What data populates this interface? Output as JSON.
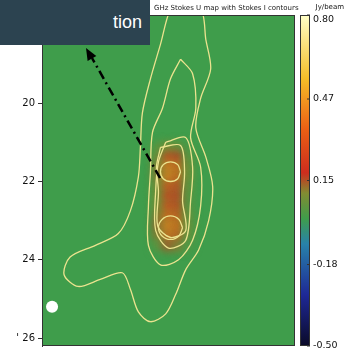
{
  "chart_data": {
    "type": "heatmap",
    "title": "GHz Stokes U map with Stokes I contours",
    "annotations": [
      "tion"
    ],
    "xlim": [
      0,
      6.3
    ],
    "ylim": [
      26.2,
      17.75
    ],
    "yticks": [
      20,
      22,
      24,
      {
        "value": 26,
        "label": "' 26"
      }
    ],
    "tick_labels": "y",
    "grid": false,
    "background": 0,
    "cells": [
      [
        2.875,
        21.125,
        0.05
      ],
      [
        3.125,
        21.125,
        0.1
      ],
      [
        3.375,
        21.125,
        0.08
      ],
      [
        3.625,
        21.125,
        0.02
      ],
      [
        2.875,
        21.375,
        0.08
      ],
      [
        3.125,
        21.375,
        0.25
      ],
      [
        3.375,
        21.375,
        0.2
      ],
      [
        3.625,
        21.375,
        0.05
      ],
      [
        2.875,
        21.625,
        0.12
      ],
      [
        3.125,
        21.625,
        0.4
      ],
      [
        3.375,
        21.625,
        0.35
      ],
      [
        3.625,
        21.625,
        0.08
      ],
      [
        2.875,
        21.875,
        0.12
      ],
      [
        3.125,
        21.875,
        0.42
      ],
      [
        3.375,
        21.875,
        0.35
      ],
      [
        3.625,
        21.875,
        0.08
      ],
      [
        2.875,
        22.125,
        0.1
      ],
      [
        3.125,
        22.125,
        0.3
      ],
      [
        3.375,
        22.125,
        0.25
      ],
      [
        3.625,
        22.125,
        0.06
      ],
      [
        2.875,
        22.375,
        0.1
      ],
      [
        3.125,
        22.375,
        0.25
      ],
      [
        3.375,
        22.375,
        0.22
      ],
      [
        3.625,
        22.375,
        0.05
      ],
      [
        2.875,
        22.625,
        0.1
      ],
      [
        3.125,
        22.625,
        0.28
      ],
      [
        3.375,
        22.625,
        0.24
      ],
      [
        3.625,
        22.625,
        0.05
      ],
      [
        2.875,
        22.875,
        0.12
      ],
      [
        3.125,
        22.875,
        0.35
      ],
      [
        3.375,
        22.875,
        0.3
      ],
      [
        3.625,
        22.875,
        0.07
      ],
      [
        2.875,
        23.125,
        0.14
      ],
      [
        3.125,
        23.125,
        0.42
      ],
      [
        3.375,
        23.125,
        0.36
      ],
      [
        3.625,
        23.125,
        0.08
      ],
      [
        2.875,
        23.375,
        0.12
      ],
      [
        3.125,
        23.375,
        0.38
      ],
      [
        3.375,
        23.375,
        0.32
      ],
      [
        3.625,
        23.375,
        0.07
      ],
      [
        2.875,
        23.625,
        0.05
      ],
      [
        3.125,
        23.625,
        0.15
      ],
      [
        3.375,
        23.625,
        0.12
      ],
      [
        3.625,
        23.625,
        0.03
      ]
    ],
    "colorbar": {
      "label": "Jy/beam",
      "range": [
        -0.5,
        0.8
      ],
      "ticks": [
        {
          "value": 0.8,
          "label": "0.80"
        },
        0.47,
        0.15,
        -0.18,
        {
          "value": -0.5,
          "label": "-0.50"
        }
      ]
    },
    "contours": [
      [
        [
          3.4,
          17.6
        ],
        [
          3.95,
          17.6
        ],
        [
          4.08,
          18.38
        ],
        [
          4.2,
          19.13
        ],
        [
          3.95,
          19.88
        ],
        [
          3.83,
          20.63
        ],
        [
          4.08,
          21.38
        ],
        [
          4.25,
          22.13
        ],
        [
          4.15,
          23.0
        ],
        [
          3.9,
          23.75
        ],
        [
          3.58,
          24.25
        ],
        [
          3.33,
          24.88
        ],
        [
          3.08,
          25.38
        ],
        [
          2.7,
          25.58
        ],
        [
          2.4,
          25.33
        ],
        [
          2.2,
          24.75
        ],
        [
          2.0,
          24.33
        ],
        [
          1.45,
          24.5
        ],
        [
          0.9,
          24.68
        ],
        [
          0.55,
          24.38
        ],
        [
          0.7,
          23.93
        ],
        [
          1.33,
          23.63
        ],
        [
          1.9,
          23.33
        ],
        [
          2.2,
          22.75
        ],
        [
          2.4,
          21.88
        ],
        [
          2.45,
          21.13
        ],
        [
          2.5,
          20.25
        ],
        [
          2.7,
          19.38
        ],
        [
          2.95,
          18.5
        ],
        [
          3.2,
          17.6
        ],
        [
          3.4,
          17.6
        ]
      ],
      [
        [
          3.45,
          18.88
        ],
        [
          3.75,
          19.25
        ],
        [
          3.83,
          20.13
        ],
        [
          3.7,
          20.88
        ],
        [
          3.95,
          21.63
        ],
        [
          3.95,
          22.63
        ],
        [
          3.75,
          23.5
        ],
        [
          3.4,
          24.0
        ],
        [
          2.95,
          24.13
        ],
        [
          2.65,
          23.63
        ],
        [
          2.65,
          22.63
        ],
        [
          2.7,
          21.75
        ],
        [
          2.75,
          20.75
        ],
        [
          3.0,
          20.13
        ],
        [
          3.2,
          19.38
        ],
        [
          3.45,
          18.88
        ]
      ],
      [
        [
          3.08,
          21.0
        ],
        [
          3.58,
          20.88
        ],
        [
          3.75,
          21.63
        ],
        [
          3.7,
          22.5
        ],
        [
          3.58,
          23.5
        ],
        [
          3.15,
          23.7
        ],
        [
          2.83,
          23.25
        ],
        [
          2.83,
          22.25
        ],
        [
          2.9,
          21.5
        ],
        [
          3.08,
          21.0
        ]
      ],
      [
        [
          2.95,
          21.13
        ],
        [
          3.45,
          21.08
        ],
        [
          3.55,
          21.75
        ],
        [
          3.5,
          22.5
        ],
        [
          3.58,
          23.25
        ],
        [
          3.2,
          23.43
        ],
        [
          2.88,
          23.13
        ],
        [
          2.9,
          22.25
        ],
        [
          2.85,
          21.63
        ],
        [
          2.95,
          21.13
        ]
      ],
      [
        [
          3.45,
          21.75
        ],
        [
          3.38,
          21.93
        ],
        [
          3.2,
          22.0
        ],
        [
          3.02,
          21.93
        ],
        [
          2.95,
          21.75
        ],
        [
          3.02,
          21.57
        ],
        [
          3.2,
          21.5
        ],
        [
          3.38,
          21.57
        ],
        [
          3.45,
          21.75
        ]
      ],
      [
        [
          3.5,
          23.18
        ],
        [
          3.41,
          23.39
        ],
        [
          3.2,
          23.48
        ],
        [
          2.99,
          23.39
        ],
        [
          2.9,
          23.18
        ],
        [
          2.99,
          22.97
        ],
        [
          3.2,
          22.88
        ],
        [
          3.41,
          22.97
        ],
        [
          3.5,
          23.18
        ]
      ]
    ],
    "beam": {
      "x": 0.25,
      "y": 25.2,
      "radius": 0.15
    }
  }
}
